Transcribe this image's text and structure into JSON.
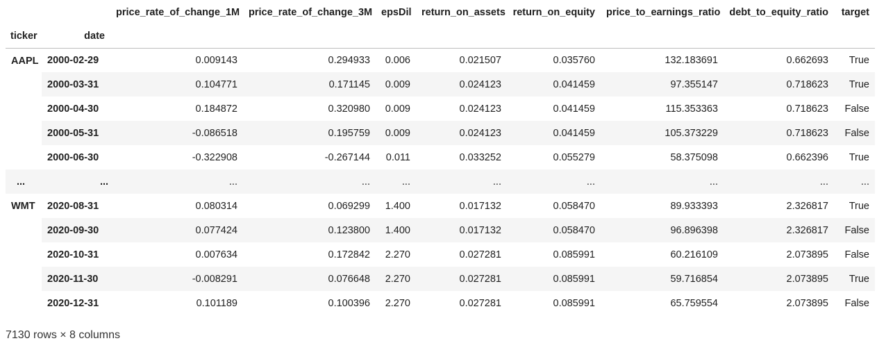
{
  "columns": [
    "price_rate_of_change_1M",
    "price_rate_of_change_3M",
    "epsDil",
    "return_on_assets",
    "return_on_equity",
    "price_to_earnings_ratio",
    "debt_to_equity_ratio",
    "target"
  ],
  "index_names": {
    "ticker": "ticker",
    "date": "date"
  },
  "groups": [
    {
      "ticker": "AAPL",
      "rows": [
        {
          "date": "2000-02-29",
          "values": [
            "0.009143",
            "0.294933",
            "0.006",
            "0.021507",
            "0.035760",
            "132.183691",
            "0.662693",
            "True"
          ]
        },
        {
          "date": "2000-03-31",
          "values": [
            "0.104771",
            "0.171145",
            "0.009",
            "0.024123",
            "0.041459",
            "97.355147",
            "0.718623",
            "True"
          ]
        },
        {
          "date": "2000-04-30",
          "values": [
            "0.184872",
            "0.320980",
            "0.009",
            "0.024123",
            "0.041459",
            "115.353363",
            "0.718623",
            "False"
          ]
        },
        {
          "date": "2000-05-31",
          "values": [
            "-0.086518",
            "0.195759",
            "0.009",
            "0.024123",
            "0.041459",
            "105.373229",
            "0.718623",
            "False"
          ]
        },
        {
          "date": "2000-06-30",
          "values": [
            "-0.322908",
            "-0.267144",
            "0.011",
            "0.033252",
            "0.055279",
            "58.375098",
            "0.662396",
            "True"
          ]
        }
      ]
    },
    {
      "ticker": "...",
      "ellipsis": true,
      "rows": [
        {
          "date": "...",
          "values": [
            "...",
            "...",
            "...",
            "...",
            "...",
            "...",
            "...",
            "..."
          ]
        }
      ]
    },
    {
      "ticker": "WMT",
      "rows": [
        {
          "date": "2020-08-31",
          "values": [
            "0.080314",
            "0.069299",
            "1.400",
            "0.017132",
            "0.058470",
            "89.933393",
            "2.326817",
            "True"
          ]
        },
        {
          "date": "2020-09-30",
          "values": [
            "0.077424",
            "0.123800",
            "1.400",
            "0.017132",
            "0.058470",
            "96.896398",
            "2.326817",
            "False"
          ]
        },
        {
          "date": "2020-10-31",
          "values": [
            "0.007634",
            "0.172842",
            "2.270",
            "0.027281",
            "0.085991",
            "60.216109",
            "2.073895",
            "False"
          ]
        },
        {
          "date": "2020-11-30",
          "values": [
            "-0.008291",
            "0.076648",
            "2.270",
            "0.027281",
            "0.085991",
            "59.716854",
            "2.073895",
            "True"
          ]
        },
        {
          "date": "2020-12-31",
          "values": [
            "0.101189",
            "0.100396",
            "2.270",
            "0.027281",
            "0.085991",
            "65.759554",
            "2.073895",
            "False"
          ]
        }
      ]
    }
  ],
  "footer": "7130 rows × 8 columns"
}
